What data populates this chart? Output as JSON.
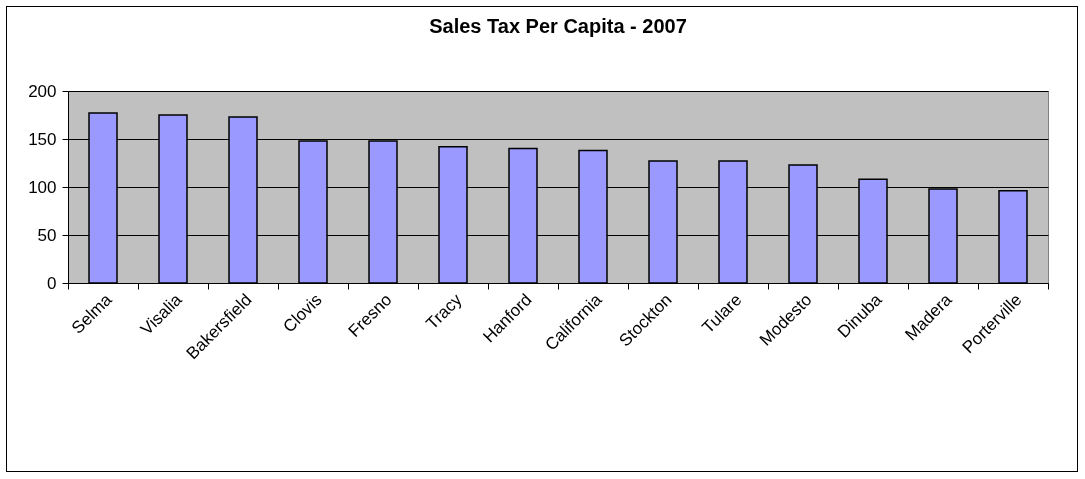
{
  "chart_data": {
    "type": "bar",
    "title": "Sales Tax Per Capita - 2007",
    "categories": [
      "Selma",
      "Visalia",
      "Bakersfield",
      "Clovis",
      "Fresno",
      "Tracy",
      "Hanford",
      "California",
      "Stockton",
      "Tulare",
      "Modesto",
      "Dinuba",
      "Madera",
      "Porterville"
    ],
    "values": [
      177,
      175,
      173,
      148,
      148,
      142,
      140,
      138,
      127,
      127,
      123,
      108,
      98,
      96
    ],
    "color": "#9999ff",
    "ylim": [
      0,
      200
    ],
    "yticks": [
      0,
      50,
      100,
      150,
      200
    ],
    "grid": "y"
  }
}
